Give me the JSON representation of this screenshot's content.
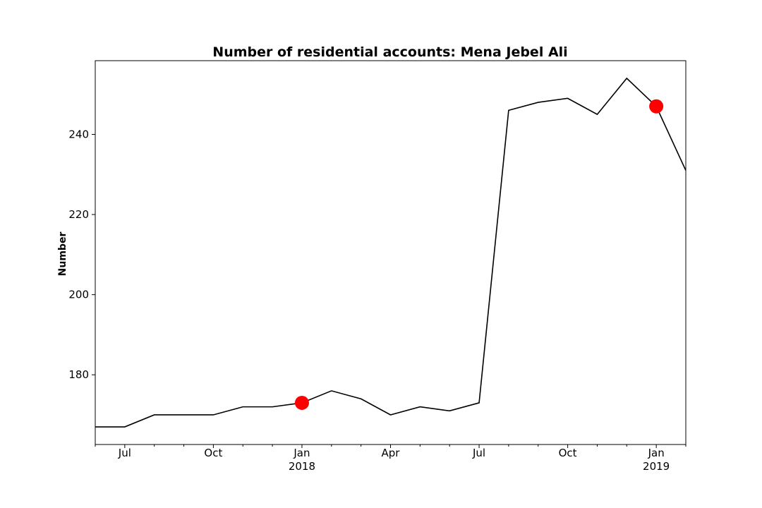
{
  "chart_data": {
    "type": "line",
    "title": "Number of residential accounts: Mena Jebel Ali",
    "xlabel": "",
    "ylabel": "Number",
    "x": [
      "2017-06",
      "2017-07",
      "2017-08",
      "2017-09",
      "2017-10",
      "2017-11",
      "2017-12",
      "2018-01",
      "2018-02",
      "2018-03",
      "2018-04",
      "2018-05",
      "2018-06",
      "2018-07",
      "2018-08",
      "2018-09",
      "2018-10",
      "2018-11",
      "2018-12",
      "2019-01",
      "2019-02"
    ],
    "series": [
      {
        "values": [
          167,
          167,
          170,
          170,
          170,
          172,
          172,
          173,
          176,
          174,
          170,
          172,
          171,
          173,
          246,
          248,
          249,
          245,
          254,
          247,
          231
        ],
        "color": "#000000"
      }
    ],
    "highlights": [
      {
        "x": "2018-01",
        "y": 173,
        "color": "#ff0000"
      },
      {
        "x": "2019-01",
        "y": 247,
        "color": "#ff0000"
      }
    ],
    "ylim": [
      162.6,
      258.4
    ],
    "xlim": [
      "2017-06",
      "2019-02"
    ],
    "yticks": [
      180,
      200,
      220,
      240
    ],
    "xticks": [
      {
        "x": "2017-07",
        "label": "Jul"
      },
      {
        "x": "2017-10",
        "label": "Oct"
      },
      {
        "x": "2018-01",
        "label": "Jan",
        "sublabel": "2018"
      },
      {
        "x": "2018-04",
        "label": "Apr"
      },
      {
        "x": "2018-07",
        "label": "Jul"
      },
      {
        "x": "2018-10",
        "label": "Oct"
      },
      {
        "x": "2019-01",
        "label": "Jan",
        "sublabel": "2019"
      }
    ],
    "grid": false,
    "legend": "none"
  }
}
